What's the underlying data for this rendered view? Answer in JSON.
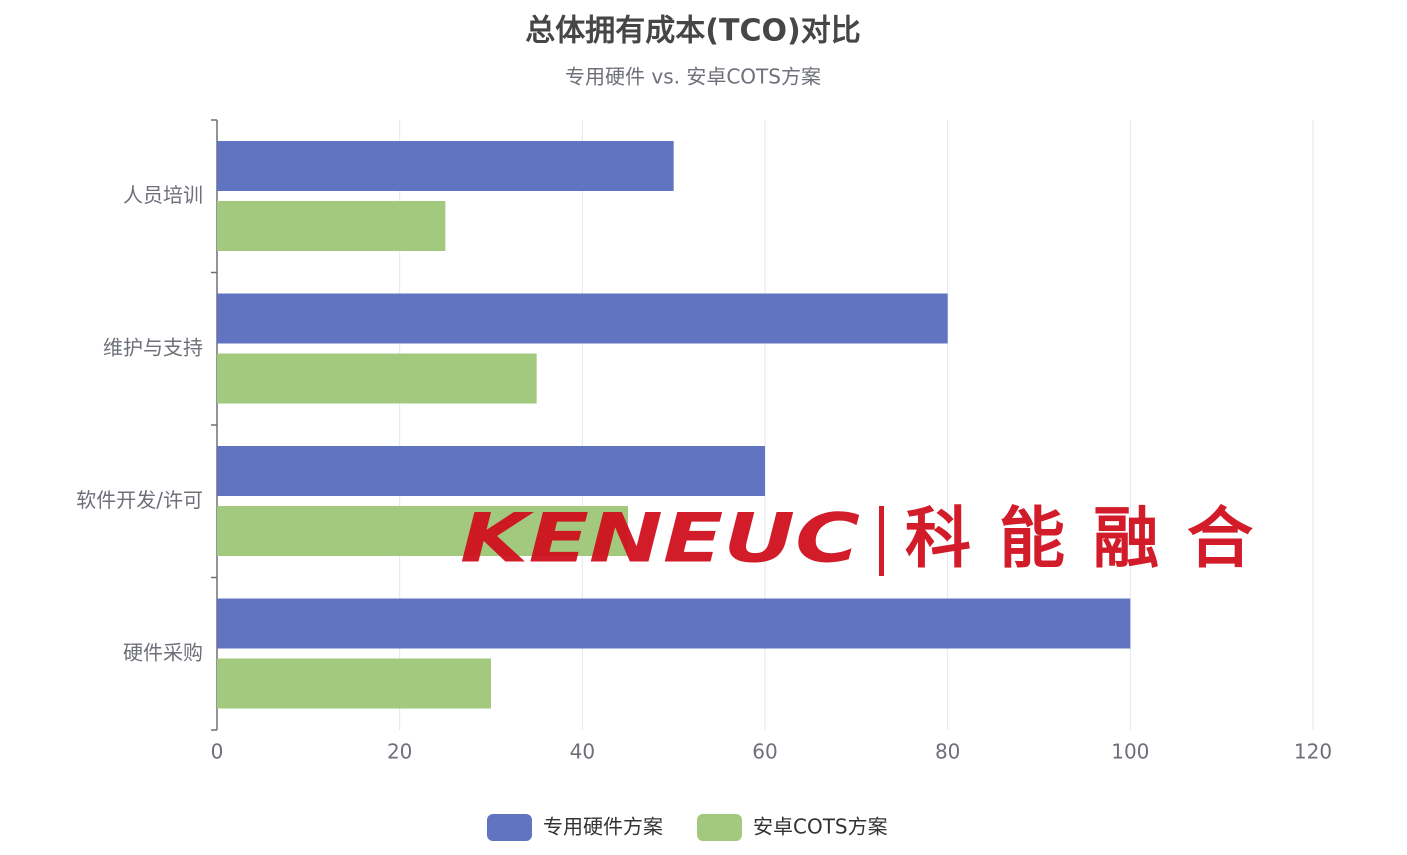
{
  "chart_data": {
    "type": "bar",
    "orientation": "horizontal",
    "title": "总体拥有成本(TCO)对比",
    "subtitle": "专用硬件 vs. 安卓COTS方案",
    "categories": [
      "硬件采购",
      "软件开发/许可",
      "维护与支持",
      "人员培训"
    ],
    "series": [
      {
        "name": "专用硬件方案",
        "color": "#6074c1",
        "values": [
          100,
          60,
          80,
          50
        ]
      },
      {
        "name": "安卓COTS方案",
        "color": "#a2c97e",
        "values": [
          30,
          45,
          35,
          25
        ]
      }
    ],
    "xlim": [
      0,
      120
    ],
    "xticks": [
      0,
      20,
      40,
      60,
      80,
      100,
      120
    ],
    "grid": true,
    "legend": "bottom"
  },
  "watermark": {
    "brand": "KENEUC",
    "name": "科能融合"
  }
}
